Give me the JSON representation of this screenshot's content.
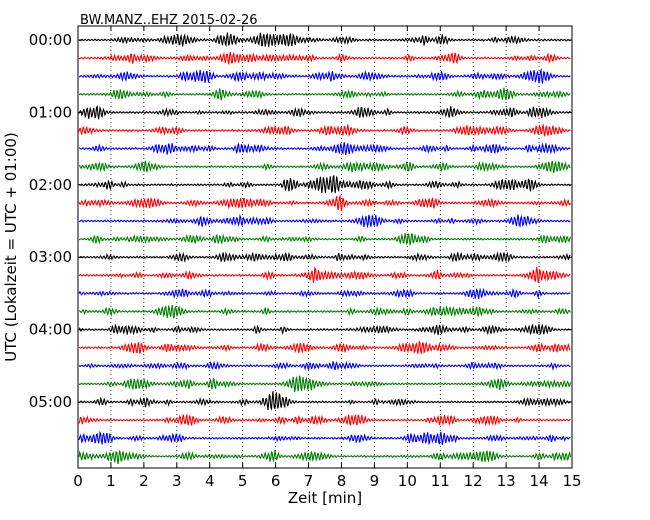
{
  "chart_data": {
    "type": "line",
    "title": "BW.MANZ..EHZ 2015-02-26",
    "xlabel": "Zeit  [min]",
    "ylabel": "UTC (Lokalzeit = UTC + 01:00)",
    "xlim": [
      0,
      15
    ],
    "x_ticks": [
      "0",
      "1",
      "2",
      "3",
      "4",
      "5",
      "6",
      "7",
      "8",
      "9",
      "10",
      "11",
      "12",
      "13",
      "14",
      "15"
    ],
    "y_ticks": [
      "00:00",
      "01:00",
      "02:00",
      "03:00",
      "04:00",
      "05:00"
    ],
    "grid": "vertical dotted",
    "trace_count": 24,
    "trace_minutes_each": 15,
    "series_colors": [
      "#000000",
      "#ff0000",
      "#0000ff",
      "#008000"
    ]
  }
}
